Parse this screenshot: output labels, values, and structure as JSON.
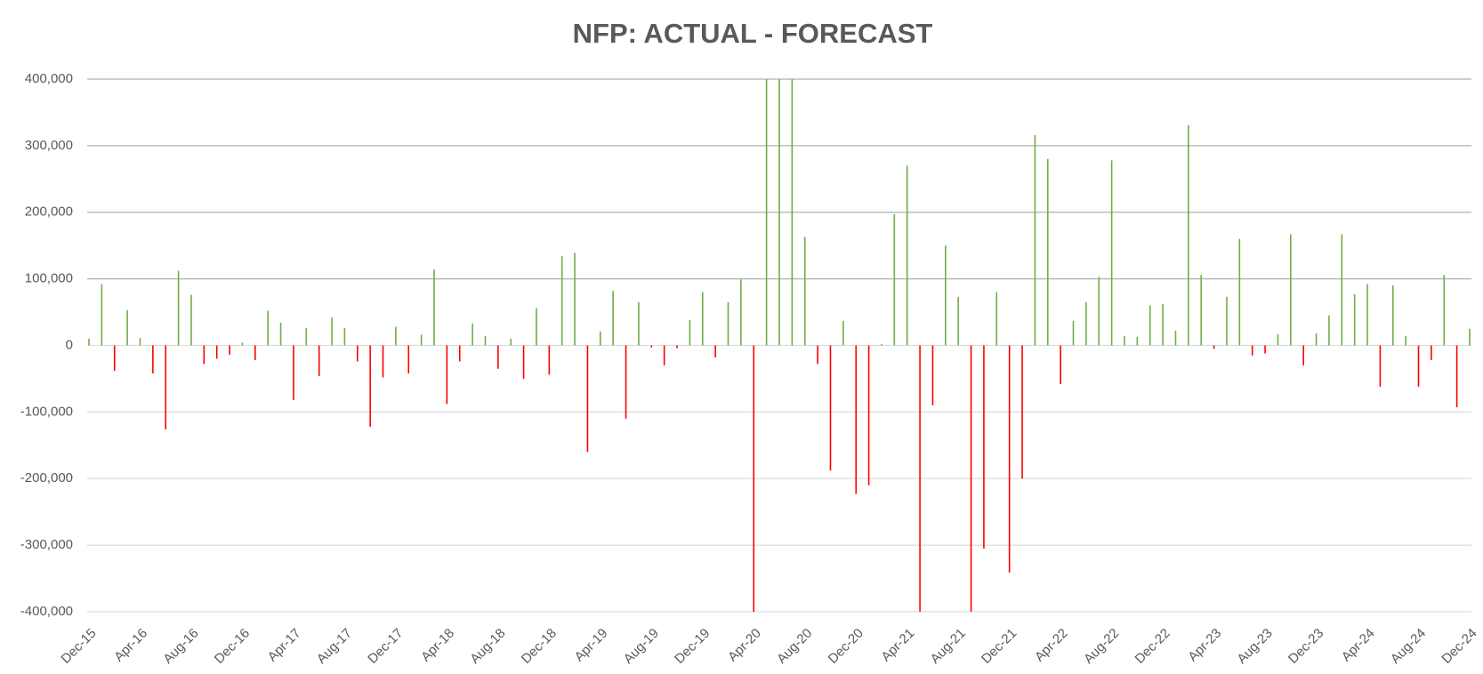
{
  "chart_data": {
    "type": "bar",
    "title": "NFP: ACTUAL - FORECAST",
    "categories": [
      "Dec-15",
      null,
      null,
      null,
      "Apr-16",
      null,
      null,
      null,
      "Aug-16",
      null,
      null,
      null,
      "Dec-16",
      null,
      null,
      null,
      "Apr-17",
      null,
      null,
      null,
      "Aug-17",
      null,
      null,
      null,
      "Dec-17",
      null,
      null,
      null,
      "Apr-18",
      null,
      null,
      null,
      "Aug-18",
      null,
      null,
      null,
      "Dec-18",
      null,
      null,
      null,
      "Apr-19",
      null,
      null,
      null,
      "Aug-19",
      null,
      null,
      null,
      "Dec-19",
      null,
      null,
      null,
      "Apr-20",
      null,
      null,
      null,
      "Aug-20",
      null,
      null,
      null,
      "Dec-20",
      null,
      null,
      null,
      "Apr-21",
      null,
      null,
      null,
      "Aug-21",
      null,
      null,
      null,
      "Dec-21",
      null,
      null,
      null,
      "Apr-22",
      null,
      null,
      null,
      "Aug-22",
      null,
      null,
      null,
      "Dec-22",
      null,
      null,
      null,
      "Apr-23",
      null,
      null,
      null,
      "Aug-23",
      null,
      null,
      null,
      "Dec-23",
      null,
      null,
      null,
      "Apr-24",
      null,
      null,
      null,
      "Aug-24",
      null,
      null,
      null,
      "Dec-24"
    ],
    "values": [
      10000,
      92000,
      -38000,
      53000,
      11000,
      -42000,
      -126000,
      112000,
      76000,
      -28000,
      -20000,
      -14000,
      4000,
      -22000,
      52000,
      34000,
      -82000,
      26000,
      -46000,
      42000,
      26000,
      -24000,
      -122000,
      -48000,
      28000,
      -42000,
      16000,
      114000,
      -88000,
      -24000,
      33000,
      14000,
      -35000,
      10000,
      -50000,
      56000,
      -44000,
      134000,
      139000,
      -160000,
      21000,
      82000,
      -110000,
      65000,
      -3000,
      -30000,
      -4000,
      38000,
      80000,
      -18000,
      65000,
      99000,
      -400000,
      400000,
      400000,
      400000,
      163000,
      -28000,
      -188000,
      37000,
      -223000,
      -210000,
      2000,
      197000,
      270000,
      -400000,
      -90000,
      150000,
      73000,
      -400000,
      -305000,
      80000,
      -341000,
      -200000,
      316000,
      280000,
      -58000,
      37000,
      65000,
      103000,
      278000,
      14000,
      13000,
      60000,
      62000,
      22000,
      331000,
      106000,
      -5000,
      73000,
      160000,
      -15000,
      -12000,
      17000,
      167000,
      -30000,
      18000,
      45000,
      167000,
      77000,
      92000,
      -62000,
      90000,
      14000,
      -62000,
      -22000,
      106000,
      -93000,
      25000
    ],
    "positive_color": "#70ad47",
    "negative_color": "#ff0000",
    "ylim": [
      -400000,
      400000
    ],
    "yticks": [
      {
        "value": -400000,
        "label": "-400,000"
      },
      {
        "value": -300000,
        "label": "-300,000"
      },
      {
        "value": -200000,
        "label": "-200,000"
      },
      {
        "value": -100000,
        "label": "-100,000"
      },
      0,
      {
        "value": 100000,
        "label": "100,000"
      },
      {
        "value": 200000,
        "label": "200,000"
      },
      {
        "value": 300000,
        "label": "300,000"
      },
      {
        "value": 400000,
        "label": "400,000"
      }
    ],
    "grid": true
  }
}
